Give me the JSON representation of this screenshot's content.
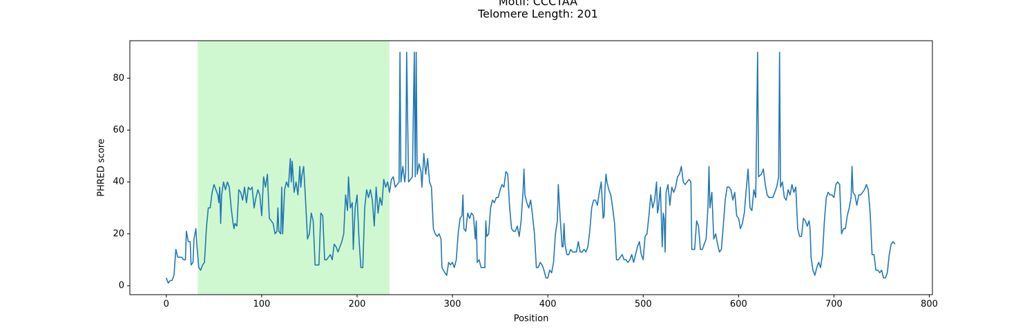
{
  "chart_data": {
    "type": "line",
    "title": "Motif: CCCTAA",
    "subtitle": "Telomere Length: 201",
    "x_label": "Position",
    "y_label": "PHRED score",
    "xlim": [
      -38.25,
      803.25
    ],
    "ylim": [
      -3.45,
      94.45
    ],
    "xticks": [
      0,
      100,
      200,
      300,
      400,
      500,
      600,
      700,
      800
    ],
    "yticks": [
      0,
      20,
      40,
      60,
      80
    ],
    "highlight": [
      33,
      234
    ],
    "highlight_color": "#d0f8d0",
    "color": "#1f77b4",
    "x": [
      0,
      2,
      4,
      6,
      8,
      10,
      12,
      14,
      16,
      18,
      20,
      21,
      23,
      25,
      26,
      28,
      29,
      31,
      32,
      34,
      36,
      38,
      40,
      42,
      44,
      46,
      48,
      50,
      52,
      54,
      55,
      56,
      57,
      58,
      60,
      62,
      64,
      66,
      68,
      70,
      71,
      72,
      74,
      76,
      78,
      80,
      82,
      84,
      86,
      88,
      90,
      92,
      94,
      96,
      98,
      100,
      102,
      104,
      106,
      108,
      110,
      112,
      114,
      116,
      117,
      118,
      120,
      121,
      122,
      124,
      126,
      128,
      130,
      131,
      132,
      134,
      136,
      138,
      140,
      141,
      142,
      144,
      146,
      148,
      150,
      152,
      154,
      156,
      158,
      160,
      162,
      164,
      166,
      168,
      170,
      172,
      174,
      176,
      178,
      180,
      182,
      184,
      186,
      188,
      190,
      191,
      193,
      195,
      196,
      198,
      200,
      202,
      204,
      206,
      208,
      210,
      212,
      214,
      216,
      218,
      220,
      222,
      224,
      226,
      228,
      230,
      232,
      234,
      236,
      238,
      240,
      244,
      245,
      246,
      248,
      250,
      251,
      252,
      254,
      256,
      258,
      260,
      261,
      262,
      263,
      265,
      267,
      268,
      270,
      272,
      274,
      276,
      278,
      280,
      282,
      284,
      286,
      288,
      289,
      292,
      294,
      296,
      298,
      300,
      302,
      304,
      306,
      308,
      310,
      311,
      312,
      314,
      316,
      318,
      320,
      322,
      324,
      325,
      326,
      328,
      330,
      332,
      334,
      335,
      336,
      338,
      340,
      342,
      344,
      346,
      348,
      350,
      352,
      354,
      356,
      358,
      360,
      362,
      364,
      366,
      368,
      370,
      372,
      374,
      375,
      376,
      378,
      380,
      382,
      384,
      386,
      388,
      390,
      392,
      394,
      396,
      398,
      400,
      402,
      404,
      406,
      408,
      410,
      411,
      413,
      415,
      416,
      417,
      418,
      420,
      422,
      424,
      426,
      428,
      430,
      432,
      434,
      436,
      438,
      440,
      442,
      444,
      446,
      448,
      450,
      452,
      454,
      456,
      458,
      459,
      460,
      461,
      462,
      464,
      466,
      468,
      470,
      472,
      474,
      476,
      478,
      480,
      482,
      484,
      486,
      488,
      490,
      492,
      494,
      496,
      498,
      500,
      502,
      504,
      506,
      508,
      510,
      512,
      514,
      515,
      516,
      518,
      520,
      521,
      522,
      523,
      524,
      526,
      528,
      530,
      532,
      534,
      536,
      538,
      540,
      542,
      544,
      546,
      548,
      550,
      551,
      552,
      554,
      556,
      558,
      560,
      562,
      564,
      566,
      568,
      569,
      570,
      572,
      574,
      576,
      578,
      580,
      582,
      584,
      586,
      588,
      590,
      592,
      594,
      596,
      598,
      600,
      602,
      604,
      606,
      608,
      610,
      612,
      614,
      616,
      618,
      620,
      621,
      624,
      626,
      628,
      630,
      632,
      634,
      636,
      640,
      642,
      643,
      644,
      646,
      648,
      650,
      652,
      654,
      656,
      658,
      660,
      662,
      664,
      666,
      668,
      670,
      672,
      674,
      675,
      676,
      678,
      680,
      682,
      684,
      686,
      688,
      690,
      692,
      694,
      696,
      698,
      700,
      702,
      704,
      706,
      708,
      710,
      712,
      714,
      716,
      718,
      719,
      720,
      722,
      724,
      726,
      728,
      730,
      732,
      734,
      736,
      738,
      740,
      742,
      744,
      746,
      748,
      750,
      752,
      754,
      756,
      758,
      760,
      762,
      764
    ],
    "values": [
      3,
      1,
      2,
      2,
      4,
      14,
      11,
      11,
      11,
      10,
      10,
      21,
      17,
      17,
      8,
      9,
      18,
      22,
      16,
      7,
      6,
      8,
      9,
      22,
      30,
      30,
      36,
      39,
      37,
      35,
      32,
      38,
      24,
      35,
      40,
      37,
      40,
      38,
      30,
      24,
      22,
      24,
      23,
      37,
      36,
      33,
      38,
      32,
      38,
      37,
      38,
      30,
      34,
      37,
      35,
      27,
      42,
      38,
      43,
      26,
      25,
      24,
      20,
      21,
      30,
      21,
      20,
      38,
      20,
      37,
      40,
      38,
      49,
      40,
      48,
      36,
      40,
      35,
      46,
      38,
      42,
      46,
      33,
      18,
      20,
      28,
      25,
      8,
      8,
      8,
      28,
      27,
      10,
      10,
      11,
      12,
      10,
      16,
      15,
      13,
      15,
      17,
      20,
      35,
      29,
      42,
      30,
      32,
      14,
      30,
      35,
      18,
      7,
      7,
      30,
      37,
      34,
      37,
      33,
      23,
      38,
      28,
      34,
      31,
      41,
      38,
      40,
      36,
      41,
      42,
      38,
      40,
      90,
      40,
      46,
      40,
      44,
      90,
      40,
      41,
      42,
      90,
      42,
      90,
      43,
      47,
      44,
      38,
      51,
      43,
      49,
      40,
      38,
      22,
      20,
      19,
      20,
      18,
      7,
      5,
      4,
      9,
      8,
      9,
      7,
      10,
      20,
      26,
      27,
      35,
      22,
      21,
      28,
      26,
      28,
      27,
      18,
      25,
      9,
      10,
      7,
      7,
      7,
      25,
      19,
      20,
      30,
      33,
      32,
      34,
      34,
      37,
      39,
      38,
      44,
      43,
      30,
      22,
      21,
      21,
      23,
      19,
      25,
      36,
      45,
      35,
      32,
      30,
      33,
      27,
      20,
      7,
      7,
      9,
      8,
      6,
      3,
      3,
      6,
      5,
      9,
      20,
      25,
      39,
      26,
      15,
      15,
      24,
      16,
      12,
      12,
      14,
      13,
      13,
      13,
      17,
      13,
      13,
      14,
      13,
      15,
      21,
      30,
      33,
      33,
      31,
      36,
      40,
      26,
      27,
      38,
      43,
      40,
      37,
      35,
      30,
      24,
      10,
      10,
      11,
      12,
      10,
      10,
      9,
      10,
      12,
      9,
      12,
      15,
      17,
      12,
      10,
      19,
      20,
      27,
      35,
      30,
      33,
      40,
      28,
      30,
      38,
      15,
      28,
      26,
      13,
      36,
      39,
      31,
      38,
      36,
      38,
      42,
      43,
      46,
      40,
      39,
      40,
      41,
      40,
      14,
      14,
      14,
      25,
      23,
      14,
      14,
      16,
      18,
      31,
      46,
      30,
      36,
      18,
      20,
      16,
      13,
      14,
      23,
      33,
      38,
      38,
      37,
      33,
      36,
      27,
      26,
      22,
      24,
      28,
      37,
      45,
      30,
      29,
      37,
      34,
      90,
      42,
      43,
      45,
      39,
      35,
      34,
      34,
      34,
      38,
      42,
      90,
      38,
      40,
      34,
      33,
      37,
      35,
      39,
      36,
      38,
      22,
      19,
      19,
      26,
      25,
      23,
      25,
      22,
      11,
      6,
      4,
      7,
      9,
      7,
      12,
      25,
      34,
      36,
      35,
      35,
      34,
      39,
      40,
      39,
      20,
      22,
      22,
      27,
      30,
      34,
      46,
      36,
      35,
      31,
      35,
      35,
      36,
      37,
      39,
      37,
      28,
      12,
      12,
      6,
      6,
      5,
      6,
      3,
      3,
      5,
      12,
      16,
      17,
      16
    ]
  }
}
